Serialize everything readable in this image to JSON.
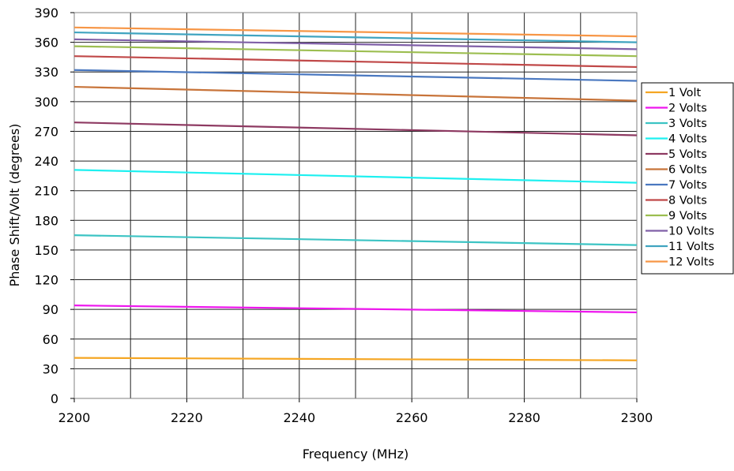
{
  "chart_data": {
    "type": "line",
    "title": "",
    "xlabel": "Frequency (MHz)",
    "ylabel": "Phase Shift/Volt (degrees)",
    "xlim": [
      2200,
      2300
    ],
    "ylim": [
      0,
      390
    ],
    "x_ticks": [
      2200,
      2220,
      2240,
      2260,
      2280,
      2300
    ],
    "y_ticks": [
      0,
      30,
      60,
      90,
      120,
      150,
      180,
      210,
      240,
      270,
      300,
      330,
      360,
      390
    ],
    "grid": "horizontal and vertical gridlines at every 10 MHz and 30 degrees",
    "legend_position": "right",
    "x": [
      2200,
      2300
    ],
    "series": [
      {
        "name": "1 Volt",
        "color": "#F5A623",
        "values": [
          41,
          38.5
        ]
      },
      {
        "name": "2 Volts",
        "color": "#EE16EE",
        "values": [
          94,
          87
        ]
      },
      {
        "name": "3 Volts",
        "color": "#3CC4C4",
        "values": [
          165,
          155
        ]
      },
      {
        "name": "4 Volts",
        "color": "#1EF0F0",
        "values": [
          231,
          218
        ]
      },
      {
        "name": "5 Volts",
        "color": "#8E3A62",
        "values": [
          279,
          266
        ]
      },
      {
        "name": "6 Volts",
        "color": "#C8743A",
        "values": [
          315,
          301
        ]
      },
      {
        "name": "7 Volts",
        "color": "#4A78C0",
        "values": [
          332,
          321
        ]
      },
      {
        "name": "8 Volts",
        "color": "#C04848",
        "values": [
          346,
          335
        ]
      },
      {
        "name": "9 Volts",
        "color": "#9CBE50",
        "values": [
          356,
          346
        ]
      },
      {
        "name": "10 Volts",
        "color": "#8060A8",
        "values": [
          363,
          353
        ]
      },
      {
        "name": "11 Volts",
        "color": "#40A4C0",
        "values": [
          370,
          360
        ]
      },
      {
        "name": "12 Volts",
        "color": "#F79646",
        "values": [
          375,
          366
        ]
      }
    ]
  }
}
